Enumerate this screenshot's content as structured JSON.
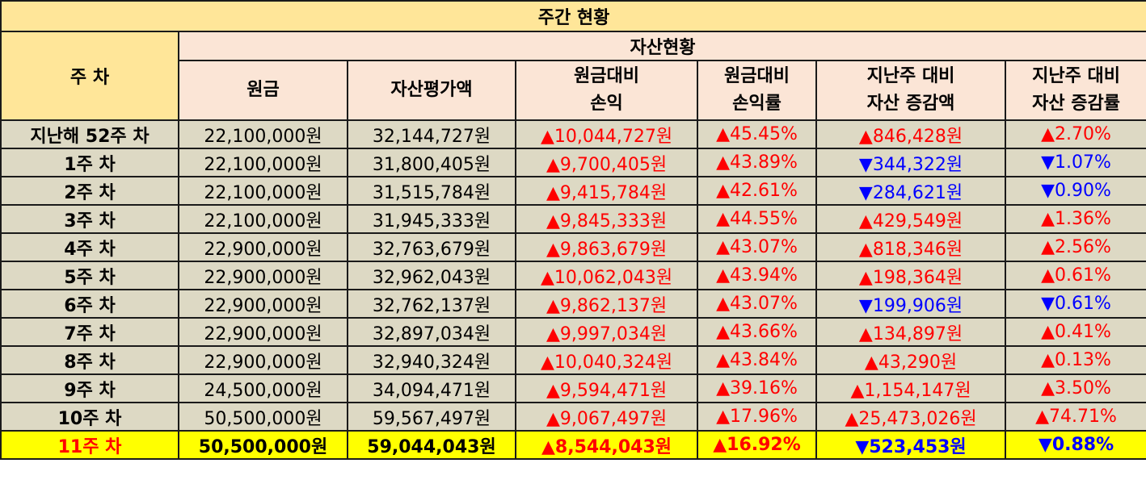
{
  "title": "주간 현황",
  "week_header": "주 차",
  "asset_header": "자산현황",
  "columns": [
    {
      "line1": "원금",
      "line2": ""
    },
    {
      "line1": "자산평가액",
      "line2": ""
    },
    {
      "line1": "원금대비",
      "line2": "손익"
    },
    {
      "line1": "원금대비",
      "line2": "손익률"
    },
    {
      "line1": "지난주 대비",
      "line2": "자산 증감액"
    },
    {
      "line1": "지난주 대비",
      "line2": "자산 증감률"
    }
  ],
  "rows": [
    {
      "week": "지난해 52주 차",
      "principal": "22,100,000원",
      "valuation": "32,144,727원",
      "pl": "▲10,044,727원",
      "pl_dir": "up",
      "pl_rate": "▲45.45%",
      "pl_rate_dir": "up",
      "change": "▲846,428원",
      "change_dir": "up",
      "change_rate": "▲2.70%",
      "change_rate_dir": "up"
    },
    {
      "week": "1주 차",
      "principal": "22,100,000원",
      "valuation": "31,800,405원",
      "pl": "▲9,700,405원",
      "pl_dir": "up",
      "pl_rate": "▲43.89%",
      "pl_rate_dir": "up",
      "change": "▼344,322원",
      "change_dir": "down",
      "change_rate": "▼1.07%",
      "change_rate_dir": "down"
    },
    {
      "week": "2주 차",
      "principal": "22,100,000원",
      "valuation": "31,515,784원",
      "pl": "▲9,415,784원",
      "pl_dir": "up",
      "pl_rate": "▲42.61%",
      "pl_rate_dir": "up",
      "change": "▼284,621원",
      "change_dir": "down",
      "change_rate": "▼0.90%",
      "change_rate_dir": "down"
    },
    {
      "week": "3주 차",
      "principal": "22,100,000원",
      "valuation": "31,945,333원",
      "pl": "▲9,845,333원",
      "pl_dir": "up",
      "pl_rate": "▲44.55%",
      "pl_rate_dir": "up",
      "change": "▲429,549원",
      "change_dir": "up",
      "change_rate": "▲1.36%",
      "change_rate_dir": "up"
    },
    {
      "week": "4주 차",
      "principal": "22,900,000원",
      "valuation": "32,763,679원",
      "pl": "▲9,863,679원",
      "pl_dir": "up",
      "pl_rate": "▲43.07%",
      "pl_rate_dir": "up",
      "change": "▲818,346원",
      "change_dir": "up",
      "change_rate": "▲2.56%",
      "change_rate_dir": "up"
    },
    {
      "week": "5주 차",
      "principal": "22,900,000원",
      "valuation": "32,962,043원",
      "pl": "▲10,062,043원",
      "pl_dir": "up",
      "pl_rate": "▲43.94%",
      "pl_rate_dir": "up",
      "change": "▲198,364원",
      "change_dir": "up",
      "change_rate": "▲0.61%",
      "change_rate_dir": "up"
    },
    {
      "week": "6주 차",
      "principal": "22,900,000원",
      "valuation": "32,762,137원",
      "pl": "▲9,862,137원",
      "pl_dir": "up",
      "pl_rate": "▲43.07%",
      "pl_rate_dir": "up",
      "change": "▼199,906원",
      "change_dir": "down",
      "change_rate": "▼0.61%",
      "change_rate_dir": "down"
    },
    {
      "week": "7주 차",
      "principal": "22,900,000원",
      "valuation": "32,897,034원",
      "pl": "▲9,997,034원",
      "pl_dir": "up",
      "pl_rate": "▲43.66%",
      "pl_rate_dir": "up",
      "change": "▲134,897원",
      "change_dir": "up",
      "change_rate": "▲0.41%",
      "change_rate_dir": "up"
    },
    {
      "week": "8주 차",
      "principal": "22,900,000원",
      "valuation": "32,940,324원",
      "pl": "▲10,040,324원",
      "pl_dir": "up",
      "pl_rate": "▲43.84%",
      "pl_rate_dir": "up",
      "change": "▲43,290원",
      "change_dir": "up",
      "change_rate": "▲0.13%",
      "change_rate_dir": "up"
    },
    {
      "week": "9주 차",
      "principal": "24,500,000원",
      "valuation": "34,094,471원",
      "pl": "▲9,594,471원",
      "pl_dir": "up",
      "pl_rate": "▲39.16%",
      "pl_rate_dir": "up",
      "change": "▲1,154,147원",
      "change_dir": "up",
      "change_rate": "▲3.50%",
      "change_rate_dir": "up"
    },
    {
      "week": "10주 차",
      "principal": "50,500,000원",
      "valuation": "59,567,497원",
      "pl": "▲9,067,497원",
      "pl_dir": "up",
      "pl_rate": "▲17.96%",
      "pl_rate_dir": "up",
      "change": "▲25,473,026원",
      "change_dir": "up",
      "change_rate": "▲74.71%",
      "change_rate_dir": "up"
    },
    {
      "week": "11주 차",
      "principal": "50,500,000원",
      "valuation": "59,044,043원",
      "pl": "▲8,544,043원",
      "pl_dir": "up",
      "pl_rate": "▲16.92%",
      "pl_rate_dir": "up",
      "change": "▼523,453원",
      "change_dir": "down",
      "change_rate": "▼0.88%",
      "change_rate_dir": "down",
      "highlight": true
    }
  ],
  "colors": {
    "title_bg": "#ffe699",
    "header_bg": "#fbe5d6",
    "row_bg": "#ddd9c4",
    "highlight_bg": "#ffff00",
    "up": "#ff0000",
    "down": "#0000ff"
  }
}
